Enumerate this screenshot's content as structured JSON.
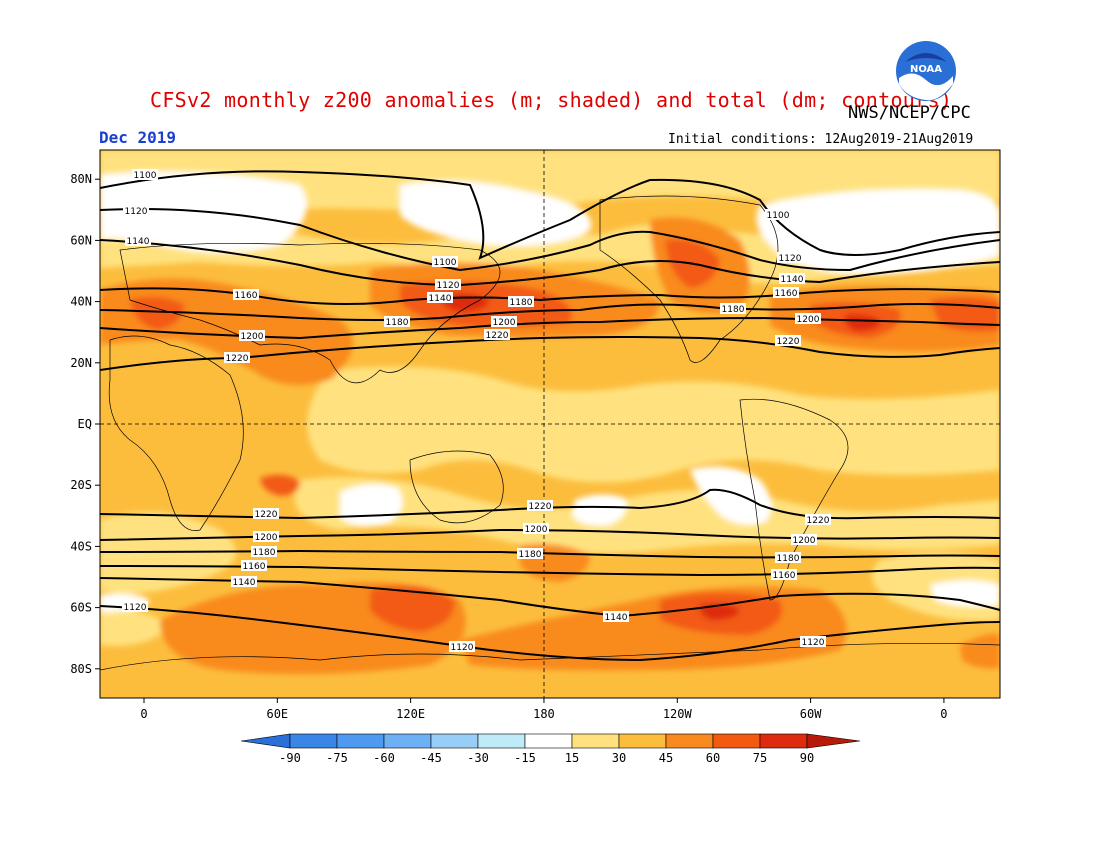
{
  "title": "CFSv2 monthly z200 anomalies (m; shaded) and total (dm; contours)",
  "agency": "NWS/NCEP/CPC",
  "valid_month": "Dec 2019",
  "initial_conditions": "Initial conditions: 12Aug2019-21Aug2019",
  "logo_text": "NOAA",
  "lat_labels": [
    "80N",
    "60N",
    "40N",
    "20N",
    "EQ",
    "20S",
    "40S",
    "60S",
    "80S"
  ],
  "lon_labels": [
    "0",
    "60E",
    "120E",
    "180",
    "120W",
    "60W",
    "0"
  ],
  "colorbar": {
    "labels": [
      "-90",
      "-75",
      "-60",
      "-45",
      "-30",
      "-15",
      "15",
      "30",
      "45",
      "60",
      "75",
      "90"
    ],
    "colors": {
      "lt_m90": "#2a70d8",
      "m90_m75": "#3a86e6",
      "m75_m60": "#4e9af0",
      "m60_m45": "#6db1f4",
      "m45_m30": "#97cdf6",
      "m30_m15": "#bfeaf7",
      "m15_15": "#ffffff",
      "15_30": "#ffe27f",
      "30_45": "#fcbd3d",
      "45_60": "#f98a1f",
      "60_75": "#f25a12",
      "75_90": "#de2a0e",
      "gt_90": "#b81a0a"
    }
  },
  "contour_labels": {
    "l1100a": "1100",
    "l1100b": "1100",
    "l1100c": "1100",
    "l1120a": "1120",
    "l1120b": "1120",
    "l1120c": "1120",
    "l1120d": "1120",
    "l1120e": "1120",
    "l1120f": "1120",
    "l1140a": "1140",
    "l1140b": "1140",
    "l1140c": "1140",
    "l1140d": "1140",
    "l1140e": "1140",
    "l1160a": "1160",
    "l1160b": "1160",
    "l1160c": "1160",
    "l1160d": "1160",
    "l1160e": "1160",
    "l1180a": "1180",
    "l1180b": "1180",
    "l1180c": "1180",
    "l1180d": "1180",
    "l1180e": "1180",
    "l1180f": "1180",
    "l1200a": "1200",
    "l1200b": "1200",
    "l1200c": "1200",
    "l1200d": "1200",
    "l1200e": "1200",
    "l1200f": "1200",
    "l1220a": "1220",
    "l1220b": "1220",
    "l1220c": "1220",
    "l1220d": "1220",
    "l1220e": "1220",
    "l1220f": "1220"
  }
}
